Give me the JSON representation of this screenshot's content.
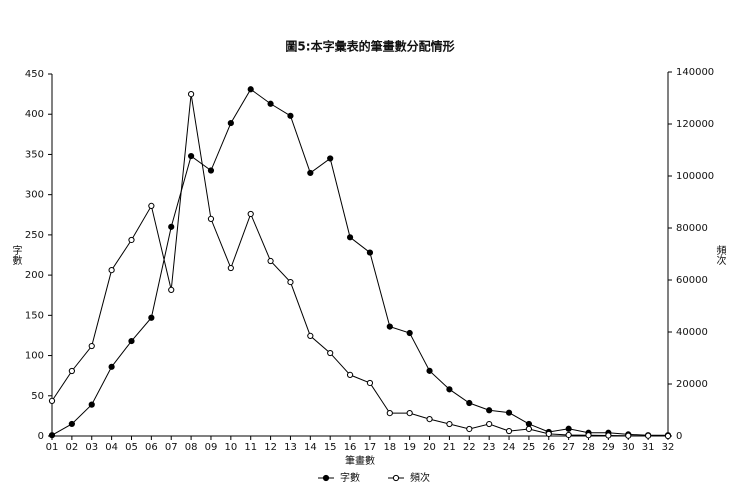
{
  "chart_data": {
    "type": "line",
    "title": "圖5:本字彙表的筆畫數分配情形",
    "x_label": "筆畫數",
    "y_label": "字數",
    "y2_label": "頻次",
    "categories": [
      "01",
      "02",
      "03",
      "04",
      "05",
      "06",
      "07",
      "08",
      "09",
      "10",
      "11",
      "12",
      "13",
      "14",
      "15",
      "16",
      "17",
      "18",
      "19",
      "20",
      "21",
      "22",
      "23",
      "24",
      "25",
      "26",
      "27",
      "28",
      "29",
      "30",
      "31",
      "32"
    ],
    "series": [
      {
        "name": "字數",
        "color": "#000000",
        "marker": "filled",
        "axis": "y",
        "values": [
          1,
          15,
          39,
          86,
          118,
          147,
          260,
          348,
          330,
          389,
          431,
          413,
          398,
          327,
          345,
          247,
          228,
          136,
          128,
          81,
          58,
          41,
          32,
          29,
          15,
          5,
          9,
          4,
          4,
          2,
          1,
          1
        ]
      },
      {
        "name": "頻次",
        "color": "#000000",
        "marker": "open",
        "axis": "y2",
        "values": [
          13500,
          25000,
          34600,
          63800,
          75400,
          88500,
          56200,
          131500,
          83500,
          64600,
          85400,
          67300,
          59200,
          38500,
          31900,
          23500,
          20400,
          8800,
          8800,
          6500,
          4600,
          2700,
          4600,
          1900,
          2700,
          800,
          400,
          300,
          200,
          100,
          100,
          0
        ]
      }
    ],
    "ylim": [
      0,
      450
    ],
    "yticks": [
      0,
      50,
      100,
      150,
      200,
      250,
      300,
      350,
      400,
      450
    ],
    "y2lim": [
      0,
      140000
    ],
    "y2ticks": [
      0,
      20000,
      40000,
      60000,
      80000,
      100000,
      120000,
      140000
    ],
    "legend": "bottom"
  }
}
